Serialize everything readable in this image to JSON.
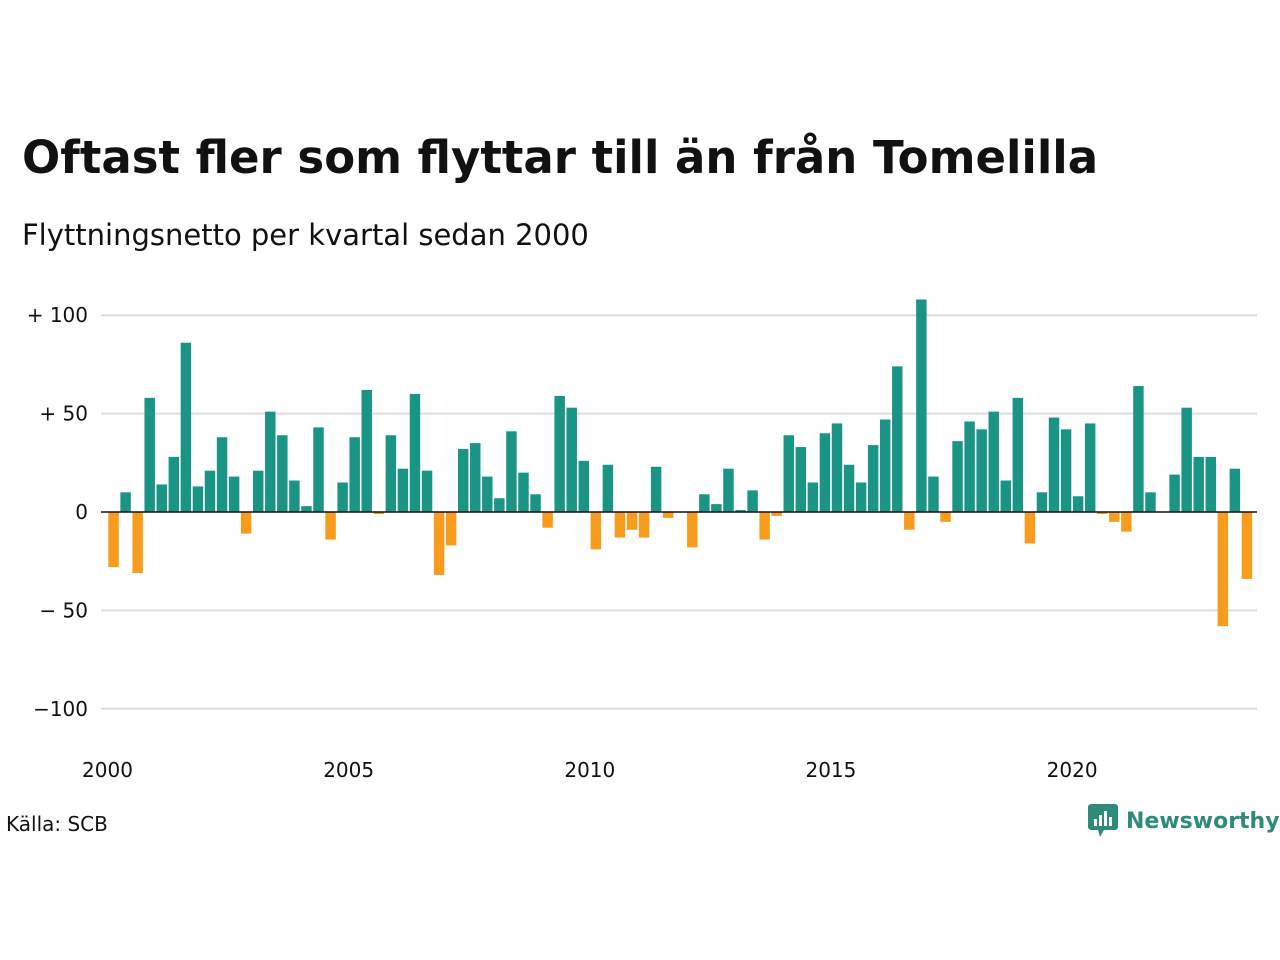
{
  "title": "Oftast fler som flyttar till än från Tomelilla",
  "subtitle": "Flyttningsnetto per kvartal sedan 2000",
  "source": "Källa: SCB",
  "brand": {
    "name": "Newsworthy",
    "icon": "newsworthy-logo-icon"
  },
  "colors": {
    "positive": "#1a9485",
    "negative": "#f79c1c",
    "grid": "#dddddd",
    "zero_line": "#111111"
  },
  "chart_data": {
    "type": "bar",
    "title": "",
    "xlabel": "",
    "ylabel": "",
    "ylim": [
      -110,
      110
    ],
    "xlim": [
      2000,
      2024
    ],
    "y_ticks": [
      {
        "value": 100,
        "label": "+ 100"
      },
      {
        "value": 50,
        "label": "+  50"
      },
      {
        "value": 0,
        "label": "0"
      },
      {
        "value": -50,
        "label": "− 50"
      },
      {
        "value": -100,
        "label": "−100"
      }
    ],
    "x_ticks": [
      {
        "value": 2000,
        "label": "2000"
      },
      {
        "value": 2005,
        "label": "2005"
      },
      {
        "value": 2010,
        "label": "2010"
      },
      {
        "value": 2015,
        "label": "2015"
      },
      {
        "value": 2020,
        "label": "2020"
      }
    ],
    "grid": true,
    "legend": "none",
    "categories": [
      "2000 Q1",
      "2000 Q2",
      "2000 Q3",
      "2000 Q4",
      "2001 Q1",
      "2001 Q2",
      "2001 Q3",
      "2001 Q4",
      "2002 Q1",
      "2002 Q2",
      "2002 Q3",
      "2002 Q4",
      "2003 Q1",
      "2003 Q2",
      "2003 Q3",
      "2003 Q4",
      "2004 Q1",
      "2004 Q2",
      "2004 Q3",
      "2004 Q4",
      "2005 Q1",
      "2005 Q2",
      "2005 Q3",
      "2005 Q4",
      "2006 Q1",
      "2006 Q2",
      "2006 Q3",
      "2006 Q4",
      "2007 Q1",
      "2007 Q2",
      "2007 Q3",
      "2007 Q4",
      "2008 Q1",
      "2008 Q2",
      "2008 Q3",
      "2008 Q4",
      "2009 Q1",
      "2009 Q2",
      "2009 Q3",
      "2009 Q4",
      "2010 Q1",
      "2010 Q2",
      "2010 Q3",
      "2010 Q4",
      "2011 Q1",
      "2011 Q2",
      "2011 Q3",
      "2011 Q4",
      "2012 Q1",
      "2012 Q2",
      "2012 Q3",
      "2012 Q4",
      "2013 Q1",
      "2013 Q2",
      "2013 Q3",
      "2013 Q4",
      "2014 Q1",
      "2014 Q2",
      "2014 Q3",
      "2014 Q4",
      "2015 Q1",
      "2015 Q2",
      "2015 Q3",
      "2015 Q4",
      "2016 Q1",
      "2016 Q2",
      "2016 Q3",
      "2016 Q4",
      "2017 Q1",
      "2017 Q2",
      "2017 Q3",
      "2017 Q4",
      "2018 Q1",
      "2018 Q2",
      "2018 Q3",
      "2018 Q4",
      "2019 Q1",
      "2019 Q2",
      "2019 Q3",
      "2019 Q4",
      "2020 Q1",
      "2020 Q2",
      "2020 Q3",
      "2020 Q4",
      "2021 Q1",
      "2021 Q2",
      "2021 Q3",
      "2021 Q4",
      "2022 Q1",
      "2022 Q2",
      "2022 Q3",
      "2022 Q4",
      "2023 Q1",
      "2023 Q2",
      "2023 Q3",
      "2023 Q4"
    ],
    "values": [
      -28,
      10,
      -31,
      58,
      14,
      28,
      86,
      13,
      21,
      38,
      18,
      -11,
      21,
      51,
      39,
      16,
      3,
      43,
      -14,
      15,
      38,
      62,
      -1,
      39,
      22,
      60,
      21,
      -32,
      -17,
      32,
      35,
      18,
      7,
      41,
      20,
      9,
      -8,
      59,
      53,
      26,
      -19,
      24,
      -13,
      -9,
      -13,
      23,
      -3,
      0,
      -18,
      9,
      4,
      22,
      1,
      11,
      -14,
      -2,
      39,
      33,
      15,
      40,
      45,
      24,
      15,
      34,
      47,
      74,
      -9,
      108,
      18,
      -5,
      36,
      46,
      42,
      51,
      16,
      58,
      -16,
      10,
      48,
      42,
      8,
      45,
      -1,
      -5,
      -10,
      64,
      10,
      0,
      19,
      53,
      28,
      28,
      -58,
      22,
      -34,
      0
    ]
  }
}
